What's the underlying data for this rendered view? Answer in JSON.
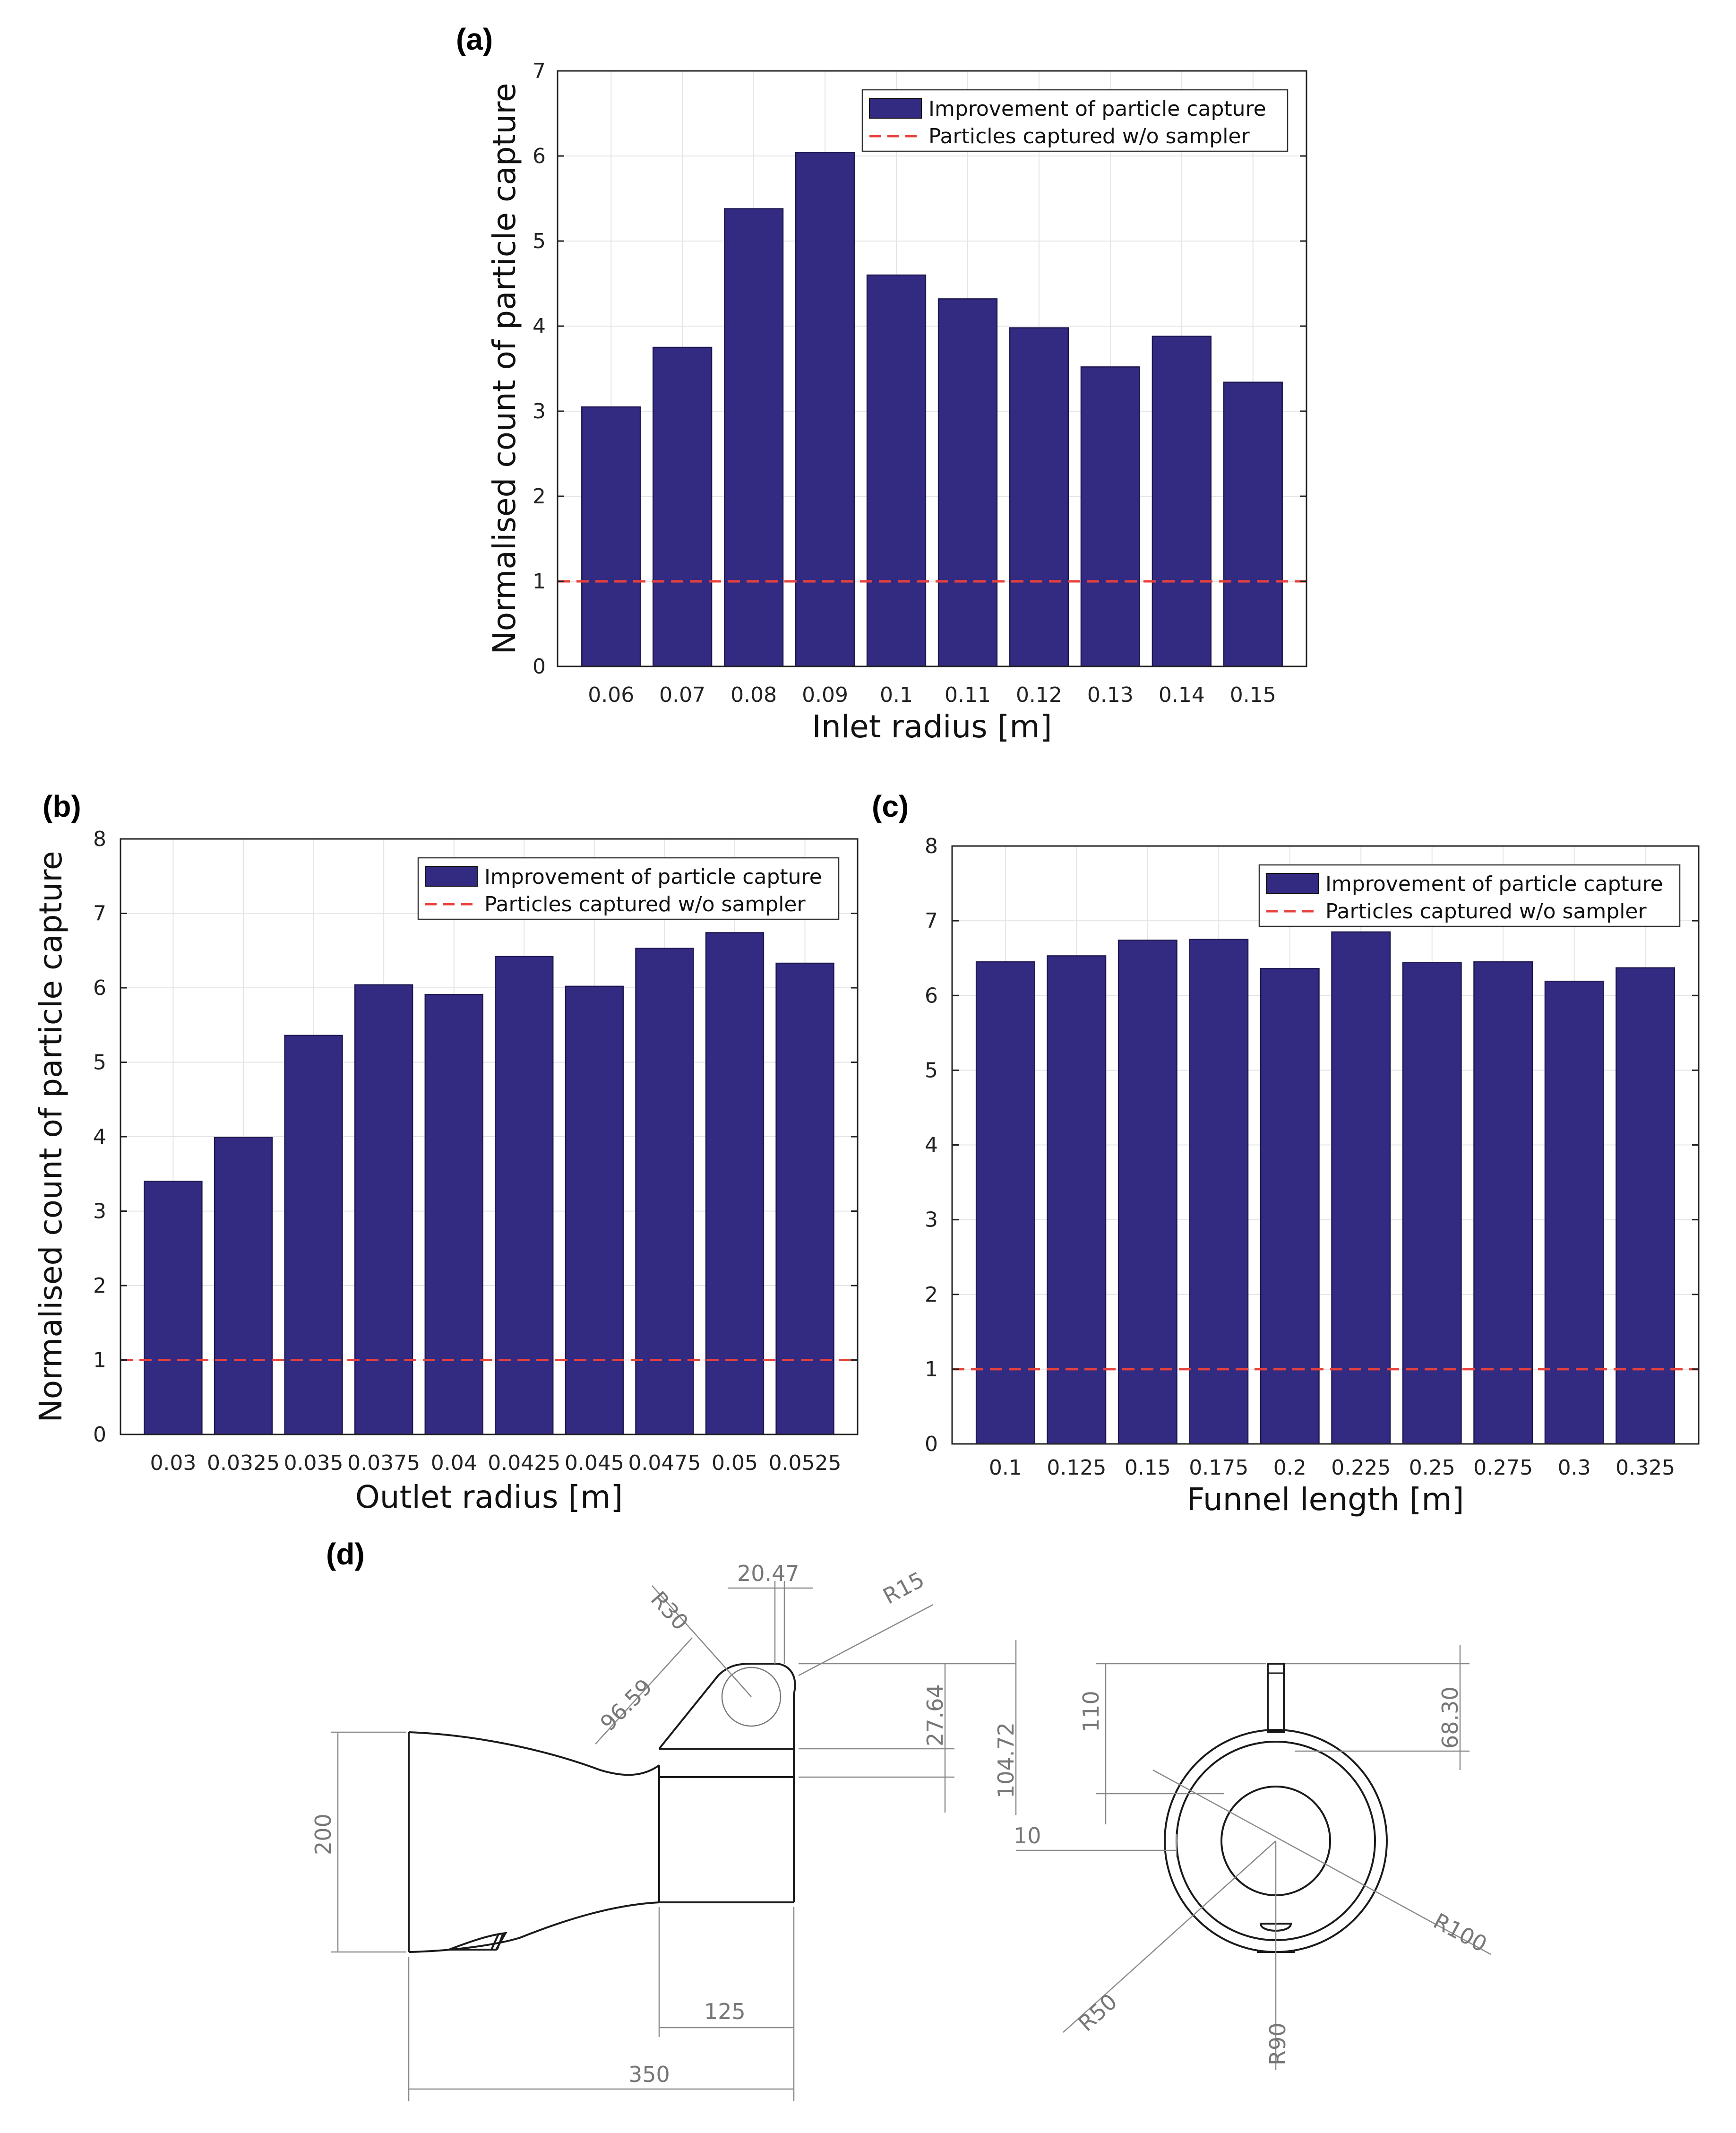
{
  "chart_data": [
    {
      "panel": "(a)",
      "type": "bar",
      "xlabel": "Inlet radius [m]",
      "ylabel": "Normalised count of particle capture",
      "categories": [
        "0.06",
        "0.07",
        "0.08",
        "0.09",
        "0.1",
        "0.11",
        "0.12",
        "0.13",
        "0.14",
        "0.15"
      ],
      "series": [
        {
          "name": "Improvement of particle capture",
          "values": [
            3.05,
            3.75,
            5.38,
            6.04,
            4.6,
            4.32,
            3.98,
            3.52,
            3.88,
            3.34
          ]
        }
      ],
      "reference": {
        "name": "Particles captured w/o sampler",
        "value": 1
      },
      "ylim": [
        0,
        7
      ],
      "yticks": [
        0,
        1,
        2,
        3,
        4,
        5,
        6,
        7
      ],
      "grid": true,
      "legend": "top-right",
      "colors": {
        "bar": "#332a82",
        "reference": "#e8413c"
      }
    },
    {
      "panel": "(b)",
      "type": "bar",
      "xlabel": "Outlet radius [m]",
      "ylabel": "Normalised count of particle capture",
      "categories": [
        "0.03",
        "0.0325",
        "0.035",
        "0.0375",
        "0.04",
        "0.0425",
        "0.045",
        "0.0475",
        "0.05",
        "0.0525"
      ],
      "series": [
        {
          "name": "Improvement of particle capture",
          "values": [
            3.4,
            3.99,
            5.36,
            6.04,
            5.91,
            6.42,
            6.02,
            6.53,
            6.74,
            6.33
          ]
        }
      ],
      "reference": {
        "name": "Particles captured w/o sampler",
        "value": 1
      },
      "ylim": [
        0,
        8
      ],
      "yticks": [
        0,
        1,
        2,
        3,
        4,
        5,
        6,
        7,
        8
      ],
      "grid": true,
      "legend": "top-right",
      "colors": {
        "bar": "#332a82",
        "reference": "#e8413c"
      }
    },
    {
      "panel": "(c)",
      "type": "bar",
      "xlabel": "Funnel length [m]",
      "ylabel": "",
      "categories": [
        "0.1",
        "0.125",
        "0.15",
        "0.175",
        "0.2",
        "0.225",
        "0.25",
        "0.275",
        "0.3",
        "0.325"
      ],
      "series": [
        {
          "name": "Improvement of particle capture",
          "values": [
            6.45,
            6.53,
            6.74,
            6.75,
            6.36,
            6.85,
            6.44,
            6.45,
            6.19,
            6.37
          ]
        }
      ],
      "reference": {
        "name": "Particles captured w/o sampler",
        "value": 1
      },
      "ylim": [
        0,
        8
      ],
      "yticks": [
        0,
        1,
        2,
        3,
        4,
        5,
        6,
        7,
        8
      ],
      "grid": true,
      "legend": "top-right",
      "colors": {
        "bar": "#332a82",
        "reference": "#e8413c"
      }
    }
  ],
  "drawing": {
    "panel": "(d)",
    "dimensions": {
      "d_20_47": "20.47",
      "d_R30": "R30",
      "d_R15": "R15",
      "d_96_59": "96.59",
      "d_27_64": "27.64",
      "d_104_72": "104.72",
      "d_200": "200",
      "d_125": "125",
      "d_350": "350",
      "d_110": "110",
      "d_68_30": "68.30",
      "d_10": "10",
      "d_R100": "R100",
      "d_R50": "R50",
      "d_R90": "R90"
    }
  }
}
